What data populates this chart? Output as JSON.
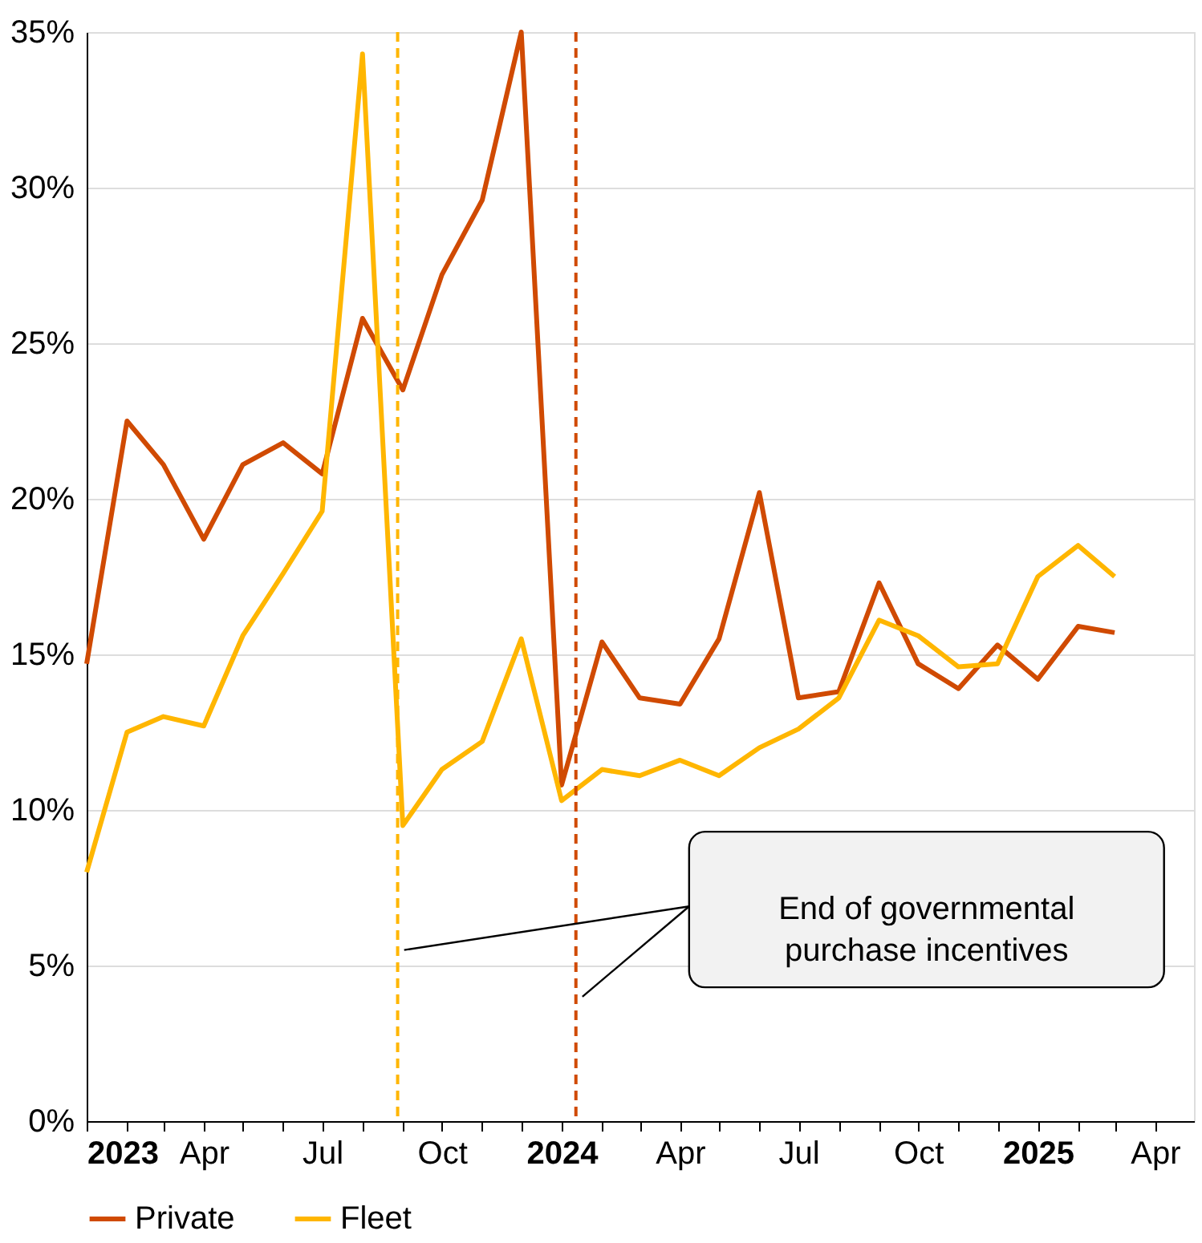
{
  "chart_data": {
    "type": "line",
    "legend": "bottom",
    "grid": "y",
    "line_style": "solid",
    "marker": "none",
    "x": [
      "2023-01",
      "2023-02",
      "2023-03",
      "2023-04",
      "2023-05",
      "2023-06",
      "2023-07",
      "2023-08",
      "2023-09",
      "2023-10",
      "2023-11",
      "2023-12",
      "2024-01",
      "2024-02",
      "2024-03",
      "2024-04",
      "2024-05",
      "2024-06",
      "2024-07",
      "2024-08",
      "2024-09",
      "2024-10",
      "2024-11",
      "2024-12",
      "2025-01",
      "2025-02",
      "2025-03"
    ],
    "series": [
      {
        "name": "Private",
        "color": "#d04a02",
        "values": [
          14.7,
          22.5,
          21.1,
          18.7,
          21.1,
          21.8,
          20.8,
          25.8,
          23.5,
          27.2,
          29.6,
          35.0,
          10.8,
          15.4,
          13.6,
          13.4,
          15.5,
          20.2,
          13.6,
          13.8,
          17.3,
          14.7,
          13.9,
          15.3,
          14.2,
          15.9,
          15.7
        ]
      },
      {
        "name": "Fleet",
        "color": "#ffb600",
        "values": [
          8.0,
          12.5,
          13.0,
          12.7,
          15.6,
          17.6,
          19.6,
          34.3,
          9.5,
          11.3,
          12.2,
          15.5,
          10.3,
          11.3,
          11.1,
          11.6,
          11.1,
          12.0,
          12.6,
          13.6,
          16.1,
          15.6,
          14.6,
          14.7,
          17.5,
          18.5,
          17.5
        ]
      }
    ],
    "ylim": [
      0,
      35
    ],
    "yticks": [
      {
        "value": 0,
        "label": "0%"
      },
      {
        "value": 5,
        "label": "5%"
      },
      {
        "value": 10,
        "label": "10%"
      },
      {
        "value": 15,
        "label": "15%"
      },
      {
        "value": 20,
        "label": "20%"
      },
      {
        "value": 25,
        "label": "25%"
      },
      {
        "value": 30,
        "label": "30%"
      },
      {
        "value": 35,
        "label": "35%"
      }
    ],
    "xlim": [
      "2023-01",
      "2025-05"
    ],
    "xticks": [
      {
        "value": "2023-01",
        "label": "2023"
      },
      {
        "value": "2023-02",
        "label": null
      },
      {
        "value": "2023-03",
        "label": null
      },
      {
        "value": "2023-04",
        "label": "Apr"
      },
      {
        "value": "2023-05",
        "label": null
      },
      {
        "value": "2023-06",
        "label": null
      },
      {
        "value": "2023-07",
        "label": "Jul"
      },
      {
        "value": "2023-08",
        "label": null
      },
      {
        "value": "2023-09",
        "label": null
      },
      {
        "value": "2023-10",
        "label": "Oct"
      },
      {
        "value": "2023-11",
        "label": null
      },
      {
        "value": "2023-12",
        "label": null
      },
      {
        "value": "2024-01",
        "label": "2024"
      },
      {
        "value": "2024-02",
        "label": null
      },
      {
        "value": "2024-03",
        "label": null
      },
      {
        "value": "2024-04",
        "label": "Apr"
      },
      {
        "value": "2024-05",
        "label": null
      },
      {
        "value": "2024-06",
        "label": null
      },
      {
        "value": "2024-07",
        "label": "Jul"
      },
      {
        "value": "2024-08",
        "label": null
      },
      {
        "value": "2024-09",
        "label": null
      },
      {
        "value": "2024-10",
        "label": "Oct"
      },
      {
        "value": "2024-11",
        "label": null
      },
      {
        "value": "2024-12",
        "label": null
      },
      {
        "value": "2025-01",
        "label": "2025"
      },
      {
        "value": "2025-02",
        "label": null
      },
      {
        "value": "2025-03",
        "label": null
      },
      {
        "value": "2025-04",
        "label": "Apr"
      }
    ],
    "ref_lines": [
      {
        "axis": "x",
        "value": "2023-08-28",
        "color": "#ffb600",
        "line_style": "dashed"
      },
      {
        "axis": "x",
        "value": "2024-01-12",
        "color": "#d04a02",
        "line_style": "dashed"
      }
    ],
    "annotations": [
      "End of governmental purchase incentives"
    ]
  }
}
